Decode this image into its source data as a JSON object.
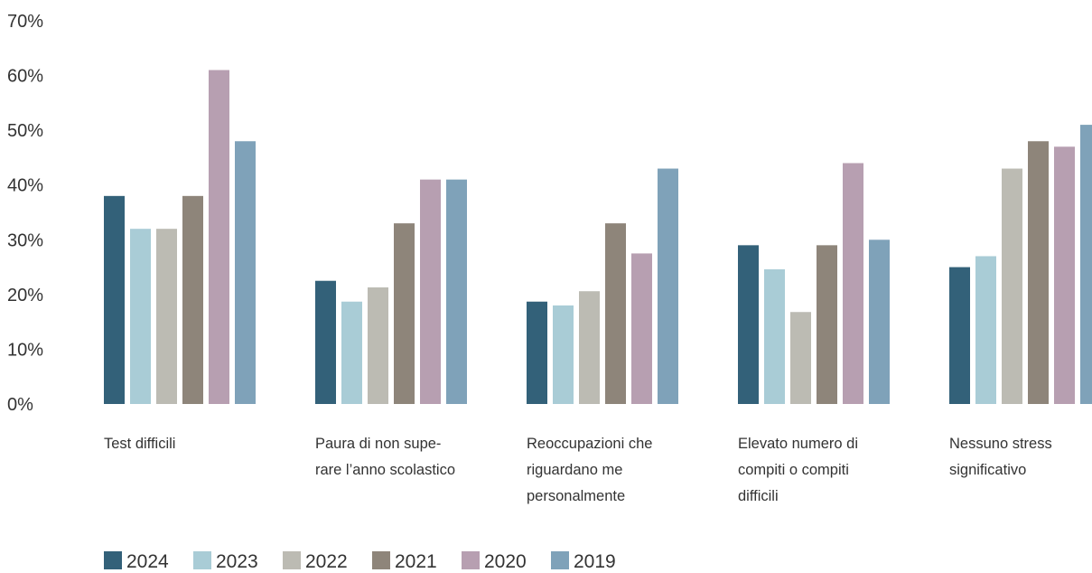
{
  "chart_data": {
    "type": "bar",
    "categories": [
      "Test difficili",
      "Paura di non supe-\nrare l’anno scolastico",
      "Reoccupazioni che\nriguardano me\npersonalmente",
      "Elevato numero di\ncompiti o compiti\ndifficili",
      "Nessuno stress\nsignificativo"
    ],
    "series": [
      {
        "name": "2024",
        "color": "#336179",
        "values": [
          38,
          22.5,
          18.7,
          29,
          25
        ]
      },
      {
        "name": "2023",
        "color": "#a9ccd6",
        "values": [
          32,
          18.7,
          18,
          24.6,
          27
        ]
      },
      {
        "name": "2022",
        "color": "#bcbbb3",
        "values": [
          32,
          21.3,
          20.6,
          16.8,
          43
        ]
      },
      {
        "name": "2021",
        "color": "#8e857a",
        "values": [
          38,
          33,
          33,
          29,
          48
        ]
      },
      {
        "name": "2020",
        "color": "#b79fb1",
        "values": [
          61,
          41,
          27.5,
          44,
          47
        ]
      },
      {
        "name": "2019",
        "color": "#7fa2b9",
        "values": [
          48,
          41,
          43,
          30,
          51
        ]
      }
    ],
    "y_ticks": [
      "0%",
      "10%",
      "20%",
      "30%",
      "40%",
      "50%",
      "60%",
      "70%"
    ],
    "ylim": [
      0,
      70
    ],
    "grid": false,
    "legend_position": "bottom-left"
  }
}
